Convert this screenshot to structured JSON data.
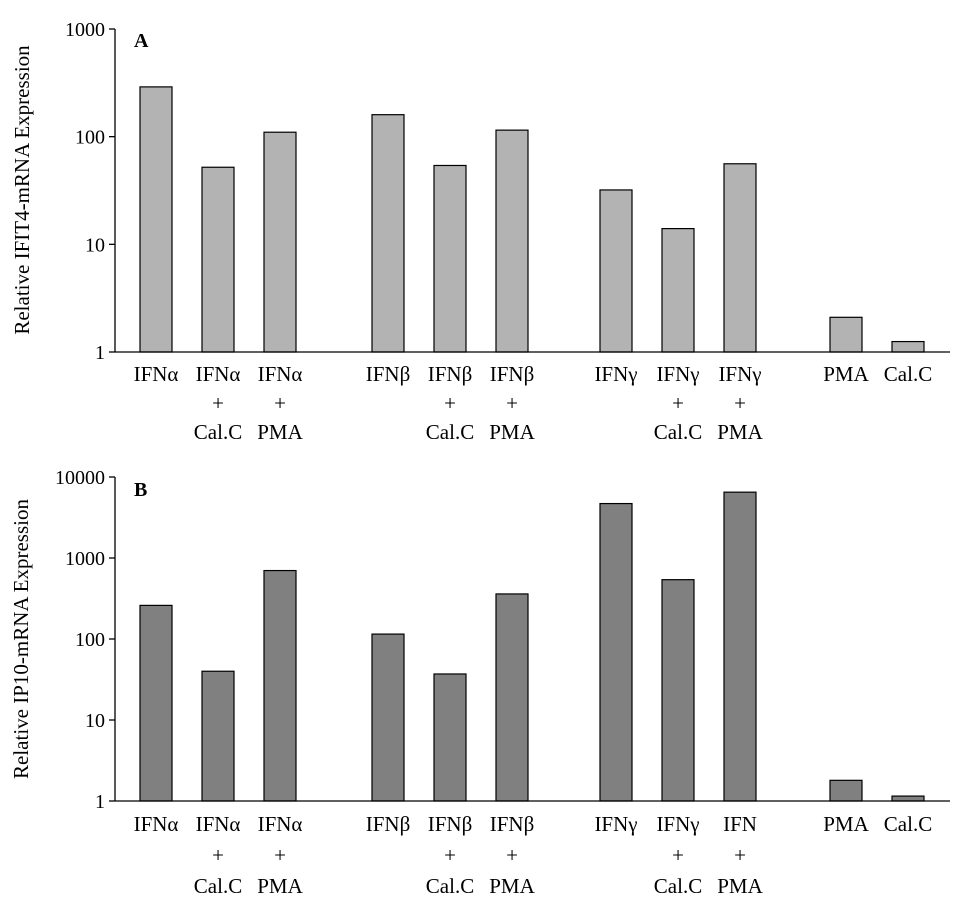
{
  "chart_data": [
    {
      "type": "bar",
      "panel": "A",
      "ylabel": "Relative IFIT4-mRNA Expression",
      "yscale": "log",
      "ylim": [
        1,
        1000
      ],
      "yticks": [
        "1",
        "10",
        "100",
        "1000"
      ],
      "color": "#b3b3b3",
      "categories": [
        [
          "IFNα"
        ],
        [
          "IFNα",
          "+",
          "Cal.C"
        ],
        [
          "IFNα",
          "+",
          "PMA"
        ],
        [
          "IFNβ"
        ],
        [
          "IFNβ",
          "+",
          "Cal.C"
        ],
        [
          "IFNβ",
          "+",
          "PMA"
        ],
        [
          "IFNγ"
        ],
        [
          "IFNγ",
          "+",
          "Cal.C"
        ],
        [
          "IFNγ",
          "+",
          "PMA"
        ],
        [
          "PMA"
        ],
        [
          "Cal.C"
        ]
      ],
      "values": [
        290,
        52,
        110,
        160,
        54,
        115,
        32,
        14,
        56,
        2.1,
        1.25
      ]
    },
    {
      "type": "bar",
      "panel": "B",
      "ylabel": "Relative IP10-mRNA Expression",
      "yscale": "log",
      "ylim": [
        1,
        10000
      ],
      "yticks": [
        "1",
        "10",
        "100",
        "1000",
        "10000"
      ],
      "color": "#808080",
      "categories": [
        [
          "IFNα"
        ],
        [
          "IFNα",
          "+",
          "Cal.C"
        ],
        [
          "IFNα",
          "+",
          "PMA"
        ],
        [
          "IFNβ"
        ],
        [
          "IFNβ",
          "+",
          "Cal.C"
        ],
        [
          "IFNβ",
          "+",
          "PMA"
        ],
        [
          "IFNγ"
        ],
        [
          "IFNγ",
          "+",
          "Cal.C"
        ],
        [
          "IFN",
          "+",
          "PMA"
        ],
        [
          "PMA"
        ],
        [
          "Cal.C"
        ]
      ],
      "values": [
        260,
        40,
        700,
        115,
        37,
        360,
        4700,
        540,
        6500,
        1.8,
        1.15
      ]
    }
  ]
}
